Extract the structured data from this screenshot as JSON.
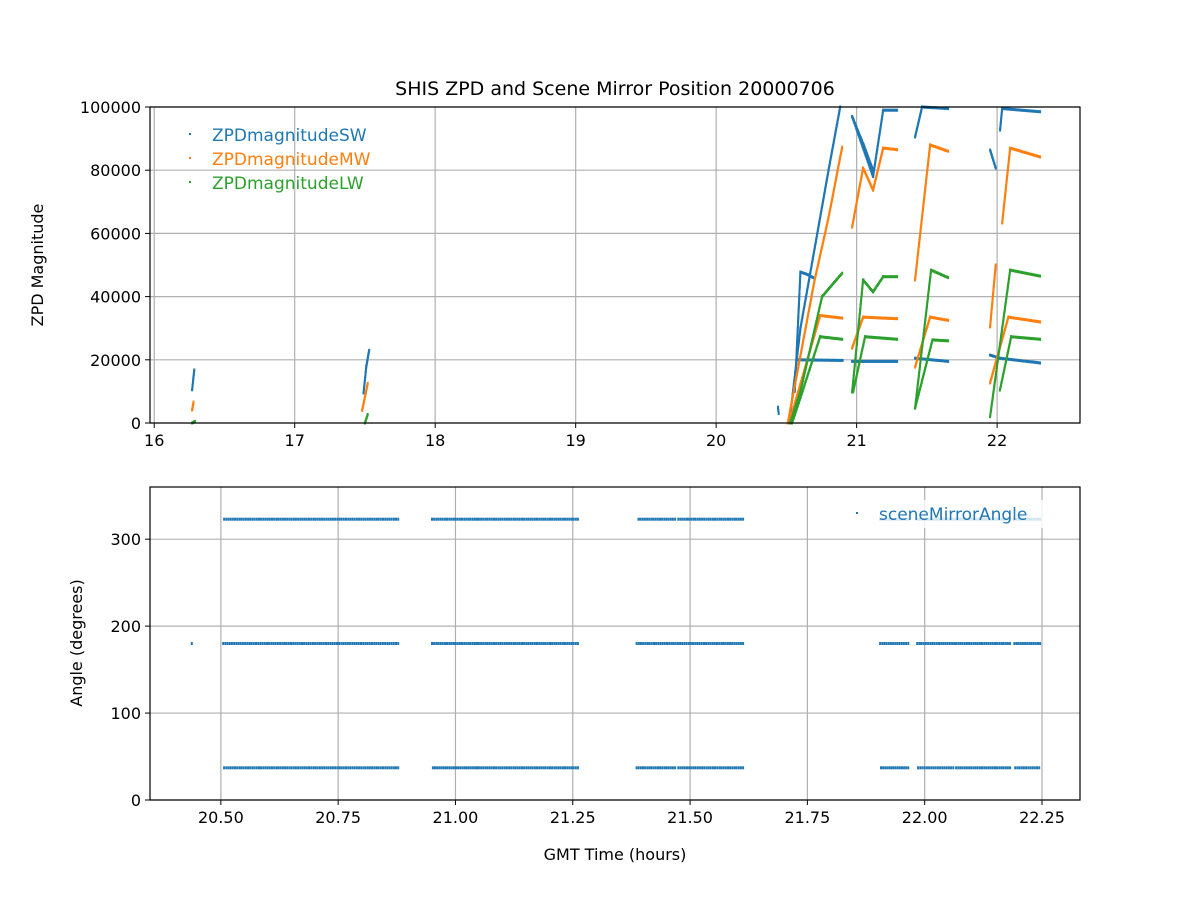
{
  "title": "SHIS ZPD and Scene Mirror Position 20000706",
  "colors": {
    "SW": "#1f77b4",
    "MW": "#ff7f0e",
    "LW": "#2ca02c",
    "grid": "#b0b0b0"
  },
  "chart_data": [
    {
      "type": "scatter",
      "title": "SHIS ZPD and Scene Mirror Position 20000706",
      "xlabel": "",
      "ylabel": "ZPD Magnitude",
      "xlim": [
        15.97,
        22.59
      ],
      "ylim": [
        0,
        100000
      ],
      "xticks": [
        16,
        17,
        18,
        19,
        20,
        21,
        22
      ],
      "xtick_labels": [
        "16",
        "17",
        "18",
        "19",
        "20",
        "21",
        "22"
      ],
      "yticks": [
        0,
        20000,
        40000,
        60000,
        80000,
        100000
      ],
      "ytick_labels": [
        "0",
        "20000",
        "40000",
        "60000",
        "80000",
        "100000"
      ],
      "grid": true,
      "legend_position": "top-left",
      "series": [
        {
          "name": "ZPDmagnitudeSW",
          "color": "#1f77b4",
          "segments": [
            [
              [
                16.27,
                10500
              ],
              [
                16.285,
                16800
              ]
            ],
            [
              [
                17.49,
                9500
              ],
              [
                17.51,
                18000
              ],
              [
                17.53,
                23000
              ]
            ],
            [
              [
                20.44,
                5000
              ],
              [
                20.445,
                3000
              ]
            ],
            [
              [
                20.53,
                3500
              ],
              [
                20.6,
                30000
              ],
              [
                20.7,
                55000
              ],
              [
                20.8,
                80000
              ],
              [
                20.883,
                100000
              ]
            ],
            [
              [
                20.56,
                10000
              ],
              [
                20.6,
                47800
              ],
              [
                20.65,
                47000
              ],
              [
                20.69,
                46000
              ]
            ],
            [
              [
                20.58,
                20000
              ],
              [
                20.9,
                19800
              ]
            ],
            [
              [
                20.968,
                97000
              ],
              [
                21.117,
                78000
              ],
              [
                21.189,
                99000
              ],
              [
                21.288,
                99000
              ]
            ],
            [
              [
                20.968,
                97000
              ],
              [
                21.05,
                88000
              ],
              [
                21.117,
                80000
              ]
            ],
            [
              [
                20.968,
                19500
              ],
              [
                21.288,
                19500
              ]
            ],
            [
              [
                21.416,
                90500
              ],
              [
                21.466,
                100000
              ],
              [
                21.651,
                99500
              ]
            ],
            [
              [
                21.416,
                20500
              ],
              [
                21.651,
                19500
              ]
            ],
            [
              [
                21.95,
                86400
              ],
              [
                21.99,
                80700
              ]
            ],
            [
              [
                22.021,
                92700
              ],
              [
                22.036,
                99500
              ],
              [
                22.306,
                98500
              ]
            ],
            [
              [
                21.95,
                21500
              ],
              [
                22.02,
                20500
              ],
              [
                22.306,
                19000
              ]
            ]
          ]
        },
        {
          "name": "ZPDmagnitudeMW",
          "color": "#ff7f0e",
          "segments": [
            [
              [
                16.27,
                4100
              ],
              [
                16.28,
                6600
              ]
            ],
            [
              [
                17.48,
                4000
              ],
              [
                17.52,
                12500
              ]
            ],
            [
              [
                20.51,
                0
              ],
              [
                20.7,
                45000
              ],
              [
                20.8,
                65000
              ],
              [
                20.897,
                87300
              ]
            ],
            [
              [
                20.52,
                0
              ],
              [
                20.74,
                34000
              ],
              [
                20.897,
                33200
              ]
            ],
            [
              [
                20.968,
                62000
              ],
              [
                21.046,
                80700
              ],
              [
                21.117,
                73700
              ],
              [
                21.189,
                87000
              ],
              [
                21.288,
                86500
              ]
            ],
            [
              [
                20.968,
                23700
              ],
              [
                21.046,
                33500
              ],
              [
                21.288,
                33000
              ]
            ],
            [
              [
                21.416,
                45300
              ],
              [
                21.523,
                88000
              ],
              [
                21.651,
                86000
              ]
            ],
            [
              [
                21.416,
                17700
              ],
              [
                21.523,
                33500
              ],
              [
                21.651,
                32500
              ]
            ],
            [
              [
                21.99,
                50000
              ],
              [
                21.95,
                30400
              ]
            ],
            [
              [
                22.036,
                63300
              ],
              [
                22.093,
                87000
              ],
              [
                22.306,
                84200
              ]
            ],
            [
              [
                21.95,
                12700
              ],
              [
                22.08,
                33500
              ],
              [
                22.306,
                32000
              ]
            ]
          ]
        },
        {
          "name": "ZPDmagnitudeLW",
          "color": "#2ca02c",
          "segments": [
            [
              [
                16.27,
                0
              ],
              [
                16.29,
                500
              ]
            ],
            [
              [
                17.5,
                0
              ],
              [
                17.52,
                2700
              ]
            ],
            [
              [
                20.527,
                0
              ],
              [
                20.6,
                10000
              ],
              [
                20.754,
                40000
              ],
              [
                20.897,
                47400
              ]
            ],
            [
              [
                20.54,
                0
              ],
              [
                20.6,
                8000
              ],
              [
                20.74,
                27300
              ],
              [
                20.897,
                26500
              ]
            ],
            [
              [
                20.968,
                9800
              ],
              [
                21.046,
                45300
              ],
              [
                21.117,
                41500
              ],
              [
                21.189,
                46300
              ],
              [
                21.288,
                46300
              ]
            ],
            [
              [
                20.975,
                9800
              ],
              [
                21.06,
                27300
              ],
              [
                21.288,
                26500
              ]
            ],
            [
              [
                21.416,
                4700
              ],
              [
                21.53,
                48400
              ],
              [
                21.651,
                46000
              ]
            ],
            [
              [
                21.416,
                4700
              ],
              [
                21.54,
                26300
              ],
              [
                21.651,
                26000
              ]
            ],
            [
              [
                21.95,
                2000
              ],
              [
                22.093,
                48400
              ],
              [
                22.306,
                46500
              ]
            ],
            [
              [
                22.02,
                10400
              ],
              [
                22.1,
                27300
              ],
              [
                22.306,
                26500
              ]
            ]
          ]
        }
      ]
    },
    {
      "type": "scatter",
      "xlabel": "GMT Time (hours)",
      "ylabel": "Angle (degrees)",
      "xlim": [
        20.349,
        22.331
      ],
      "ylim": [
        0,
        360
      ],
      "xticks": [
        20.5,
        20.75,
        21.0,
        21.25,
        21.5,
        21.75,
        22.0,
        22.25
      ],
      "xtick_labels": [
        "20.50",
        "20.75",
        "21.00",
        "21.25",
        "21.50",
        "21.75",
        "22.00",
        "22.25"
      ],
      "yticks": [
        0,
        100,
        200,
        300
      ],
      "ytick_labels": [
        "0",
        "100",
        "200",
        "300"
      ],
      "grid": true,
      "legend_position": "top-right",
      "series": [
        {
          "name": "sceneMirrorAngle",
          "color": "#1f77b4",
          "segments": [
            {
              "angle": 323,
              "x": [
                20.507,
                20.878
              ]
            },
            {
              "angle": 323,
              "x": [
                20.95,
                21.046
              ]
            },
            {
              "angle": 323,
              "x": [
                21.05,
                21.261
              ]
            },
            {
              "angle": 323,
              "x": [
                21.39,
                21.468
              ]
            },
            {
              "angle": 323,
              "x": [
                21.475,
                21.613
              ]
            },
            {
              "angle": 323,
              "x": [
                21.905,
                21.965
              ]
            },
            {
              "angle": 323,
              "x": [
                21.984,
                22.063
              ]
            },
            {
              "angle": 323,
              "x": [
                22.067,
                22.182
              ]
            },
            {
              "angle": 323,
              "x": [
                22.191,
                22.246
              ]
            },
            {
              "angle": 180,
              "x": [
                20.438,
                20.44
              ]
            },
            {
              "angle": 180,
              "x": [
                20.505,
                20.878
              ]
            },
            {
              "angle": 180,
              "x": [
                20.95,
                21.046
              ]
            },
            {
              "angle": 180,
              "x": [
                21.05,
                21.261
              ]
            },
            {
              "angle": 180,
              "x": [
                21.386,
                21.613
              ]
            },
            {
              "angle": 180,
              "x": [
                21.905,
                21.965
              ]
            },
            {
              "angle": 180,
              "x": [
                21.984,
                22.063
              ]
            },
            {
              "angle": 180,
              "x": [
                22.067,
                22.182
              ]
            },
            {
              "angle": 180,
              "x": [
                22.191,
                22.246
              ]
            },
            {
              "angle": 37,
              "x": [
                20.507,
                20.878
              ]
            },
            {
              "angle": 37,
              "x": [
                20.952,
                21.046
              ]
            },
            {
              "angle": 37,
              "x": [
                21.05,
                21.261
              ]
            },
            {
              "angle": 37,
              "x": [
                21.386,
                21.468
              ]
            },
            {
              "angle": 37,
              "x": [
                21.475,
                21.613
              ]
            },
            {
              "angle": 37,
              "x": [
                21.907,
                21.965
              ]
            },
            {
              "angle": 37,
              "x": [
                21.986,
                22.061
              ]
            },
            {
              "angle": 37,
              "x": [
                22.067,
                22.182
              ]
            },
            {
              "angle": 37,
              "x": [
                22.193,
                22.244
              ]
            }
          ]
        }
      ]
    }
  ]
}
